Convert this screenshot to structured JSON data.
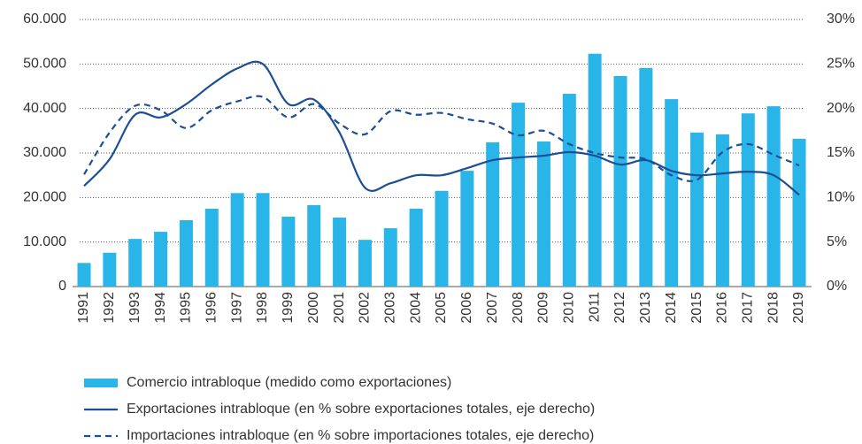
{
  "chart_data": {
    "type": "bar",
    "categories": [
      "1991",
      "1992",
      "1993",
      "1994",
      "1995",
      "1996",
      "1997",
      "1998",
      "1999",
      "2000",
      "2001",
      "2002",
      "2003",
      "2004",
      "2005",
      "2006",
      "2007",
      "2008",
      "2009",
      "2010",
      "2011",
      "2012",
      "2013",
      "2014",
      "2015",
      "2016",
      "2017",
      "2018",
      "2019"
    ],
    "series": [
      {
        "name": "Comercio intrabloque (medido como exportaciones)",
        "type": "bar",
        "color": "#29b5e8",
        "values": [
          5300,
          7600,
          10700,
          12300,
          14900,
          17500,
          21000,
          21000,
          15700,
          18300,
          15500,
          10500,
          13100,
          17500,
          21500,
          26000,
          32400,
          41300,
          32600,
          43300,
          52300,
          47300,
          49100,
          42100,
          34600,
          34200,
          38900,
          40500,
          33200
        ]
      },
      {
        "name": "Exportaciones intrabloque (en % sobre exportaciones totales, eje derecho)",
        "type": "line",
        "style": "solid",
        "axis": "y2",
        "color": "#1a4f96",
        "values": [
          11.3,
          14.3,
          19.3,
          19.0,
          20.5,
          22.7,
          24.5,
          25.0,
          20.5,
          21.0,
          17.3,
          11.1,
          11.6,
          12.5,
          12.5,
          13.3,
          14.2,
          14.5,
          14.7,
          15.1,
          14.7,
          13.7,
          14.2,
          13.0,
          12.5,
          12.7,
          12.9,
          12.5,
          10.3
        ]
      },
      {
        "name": "Importaciones intrabloque (en % sobre importaciones totales, eje derecho)",
        "type": "line",
        "style": "dashed",
        "axis": "y2",
        "color": "#1a4f96",
        "values": [
          12.6,
          17.3,
          20.3,
          19.8,
          17.8,
          19.8,
          20.8,
          21.3,
          19.0,
          20.5,
          18.3,
          17.1,
          19.7,
          19.3,
          19.5,
          18.8,
          18.3,
          17.0,
          17.5,
          16.0,
          15.0,
          14.5,
          14.3,
          12.5,
          12.0,
          15.1,
          16.0,
          14.8,
          13.6
        ]
      }
    ],
    "ylim": [
      0,
      60000
    ],
    "yticks": [
      0,
      {
        "value": 10000,
        "label": "10.000"
      },
      {
        "value": 20000,
        "label": "20.000"
      },
      {
        "value": 30000,
        "label": "30.000"
      },
      {
        "value": 40000,
        "label": "40.000"
      },
      {
        "value": 50000,
        "label": "50.000"
      },
      {
        "value": 60000,
        "label": "60.000"
      }
    ],
    "y2lim": [
      0,
      30
    ],
    "y2ticks": [
      {
        "value": 0,
        "label": "0%"
      },
      {
        "value": 5,
        "label": "5%"
      },
      {
        "value": 10,
        "label": "10%"
      },
      {
        "value": 15,
        "label": "15%"
      },
      {
        "value": 20,
        "label": "20%"
      },
      {
        "value": 25,
        "label": "25%"
      },
      {
        "value": 30,
        "label": "30%"
      }
    ],
    "grid": true,
    "legend": "bottom"
  }
}
